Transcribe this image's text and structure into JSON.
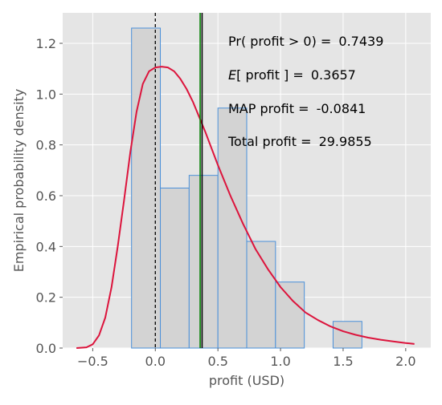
{
  "chart_data": {
    "type": "bar",
    "xlabel": "profit (USD)",
    "ylabel": "Empirical probability density",
    "xlim": [
      -0.74,
      2.2
    ],
    "ylim": [
      0,
      1.32
    ],
    "xticks": [
      -0.5,
      0.0,
      0.5,
      1.0,
      1.5,
      2.0
    ],
    "xtick_labels": [
      "−0.5",
      "0.0",
      "0.5",
      "1.0",
      "1.5",
      "2.0"
    ],
    "yticks": [
      0.0,
      0.2,
      0.4,
      0.6,
      0.8,
      1.0,
      1.2
    ],
    "ytick_labels": [
      "0.0",
      "0.2",
      "0.4",
      "0.6",
      "0.8",
      "1.0",
      "1.2"
    ],
    "grid": true,
    "bins": [
      {
        "x0": -0.19,
        "x1": 0.04,
        "density": 1.26
      },
      {
        "x0": 0.04,
        "x1": 0.27,
        "density": 0.63
      },
      {
        "x0": 0.27,
        "x1": 0.5,
        "density": 0.68
      },
      {
        "x0": 0.5,
        "x1": 0.73,
        "density": 0.945
      },
      {
        "x0": 0.73,
        "x1": 0.96,
        "density": 0.42
      },
      {
        "x0": 0.96,
        "x1": 1.19,
        "density": 0.26
      },
      {
        "x0": 1.19,
        "x1": 1.42,
        "density": 0.0
      },
      {
        "x0": 1.42,
        "x1": 1.65,
        "density": 0.105
      }
    ],
    "density_curve": {
      "x": [
        -0.63,
        -0.55,
        -0.5,
        -0.45,
        -0.4,
        -0.35,
        -0.3,
        -0.25,
        -0.2,
        -0.15,
        -0.1,
        -0.05,
        0.0,
        0.05,
        0.1,
        0.15,
        0.2,
        0.25,
        0.3,
        0.35,
        0.4,
        0.5,
        0.6,
        0.7,
        0.8,
        0.9,
        1.0,
        1.1,
        1.2,
        1.3,
        1.4,
        1.5,
        1.6,
        1.7,
        1.8,
        1.9,
        2.0,
        2.07
      ],
      "y": [
        0.0,
        0.003,
        0.015,
        0.05,
        0.12,
        0.24,
        0.4,
        0.58,
        0.77,
        0.93,
        1.04,
        1.09,
        1.105,
        1.108,
        1.105,
        1.09,
        1.06,
        1.02,
        0.97,
        0.91,
        0.85,
        0.72,
        0.6,
        0.49,
        0.39,
        0.31,
        0.24,
        0.185,
        0.14,
        0.11,
        0.085,
        0.066,
        0.052,
        0.041,
        0.033,
        0.026,
        0.02,
        0.016
      ],
      "color": "#dc143c"
    },
    "vlines": [
      {
        "x": 0.0,
        "style": "dashed",
        "color": "#000000"
      },
      {
        "x": 0.3657,
        "style": "solid",
        "color": "#008000"
      },
      {
        "x": 0.3657,
        "style": "solid",
        "color": "#000000"
      }
    ],
    "annotations": [
      {
        "prefix": "Pr( profit ",
        "mid": "> 0) = ",
        "value": "0.7439",
        "italic": ""
      },
      {
        "prefix": "",
        "italic": "E",
        "mid": "[ profit ] = ",
        "value": "0.3657"
      },
      {
        "prefix": "MAP profit ",
        "mid": "= ",
        "value": "-0.0841",
        "italic": ""
      },
      {
        "prefix": "Total profit ",
        "mid": "= ",
        "value": "29.9855",
        "italic": ""
      }
    ],
    "colors": {
      "background": "#e5e5e5",
      "grid": "#ffffff",
      "bar_fill": "#d3d3d3",
      "bar_edge": "#4a90d9"
    }
  }
}
